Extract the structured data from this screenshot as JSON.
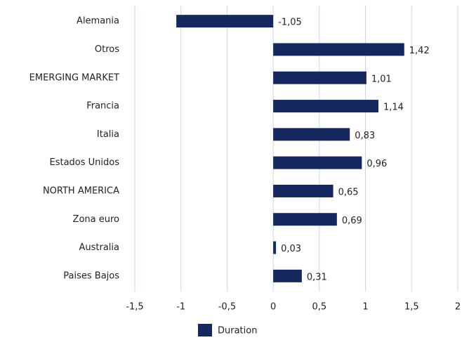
{
  "chart_data": {
    "type": "bar",
    "orientation": "horizontal",
    "categories": [
      "Alemania",
      "Otros",
      "EMERGING MARKET",
      "Francia",
      "Italia",
      "Estados Unidos",
      "NORTH AMERICA",
      "Zona euro",
      "Australia",
      "Paises Bajos"
    ],
    "series": [
      {
        "name": "Duration",
        "color": "#14285f",
        "values": [
          -1.05,
          1.42,
          1.01,
          1.14,
          0.83,
          0.96,
          0.65,
          0.69,
          0.03,
          0.31
        ],
        "value_labels": [
          "-1,05",
          "1,42",
          "1,01",
          "1,14",
          "0,83",
          "0,96",
          "0,65",
          "0,69",
          "0,03",
          "0,31"
        ]
      }
    ],
    "xlim": [
      -1.5,
      2
    ],
    "xticks": [
      {
        "value": -1.5,
        "label": "-1,5"
      },
      -1,
      {
        "value": -0.5,
        "label": "-0,5"
      },
      0,
      {
        "value": 0.5,
        "label": "0,5"
      },
      1,
      {
        "value": 1.5,
        "label": "1,5"
      },
      2
    ],
    "grid": true,
    "legend": "bottom"
  }
}
